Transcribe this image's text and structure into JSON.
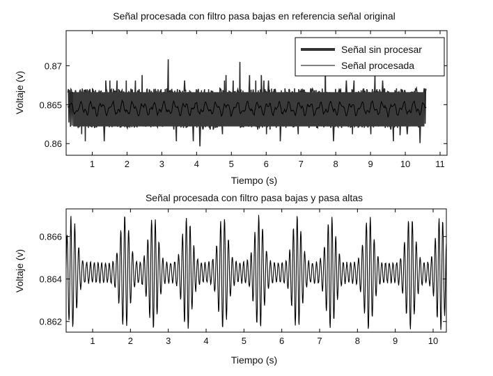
{
  "chart_data": [
    {
      "type": "line",
      "title": "Señal procesada con filtro pasa bajas en referencia señal original",
      "xlabel": "Tiempo (s)",
      "ylabel": "Voltaje (v)",
      "xlim": [
        0.25,
        11.2
      ],
      "ylim": [
        0.8585,
        0.8745
      ],
      "xticks": [
        1,
        2,
        3,
        4,
        5,
        6,
        7,
        8,
        9,
        10,
        11
      ],
      "yticks": [
        0.86,
        0.865,
        0.87
      ],
      "ytick_labels": [
        "0.86",
        "0.865",
        "0.87"
      ],
      "legend": {
        "position": "top-right"
      },
      "series": [
        {
          "name": "Señal sin procesar",
          "style": "thick",
          "x_range": [
            0.3,
            10.6
          ],
          "baseline": 0.865,
          "amplitude": 0.0045
        },
        {
          "name": "Señal procesada",
          "style": "thin",
          "x_range": [
            0.3,
            10.6
          ],
          "baseline": 0.8645,
          "amplitude": 0.0012
        }
      ]
    },
    {
      "type": "line",
      "title": "Señal procesada con filtro pasa bajas y pasa altas",
      "xlabel": "Tiempo (s)",
      "ylabel": "Voltaje (v)",
      "xlim": [
        0.3,
        10.35
      ],
      "ylim": [
        0.8615,
        0.8673
      ],
      "xticks": [
        1,
        2,
        3,
        4,
        5,
        6,
        7,
        8,
        9,
        10
      ],
      "yticks": [
        0.862,
        0.864,
        0.866
      ],
      "ytick_labels": [
        "0.862",
        "0.864",
        "0.866"
      ],
      "series": [
        {
          "x_range": [
            0.3,
            10.35
          ],
          "baseline": 0.8643,
          "amplitude": 0.0026
        }
      ]
    }
  ]
}
